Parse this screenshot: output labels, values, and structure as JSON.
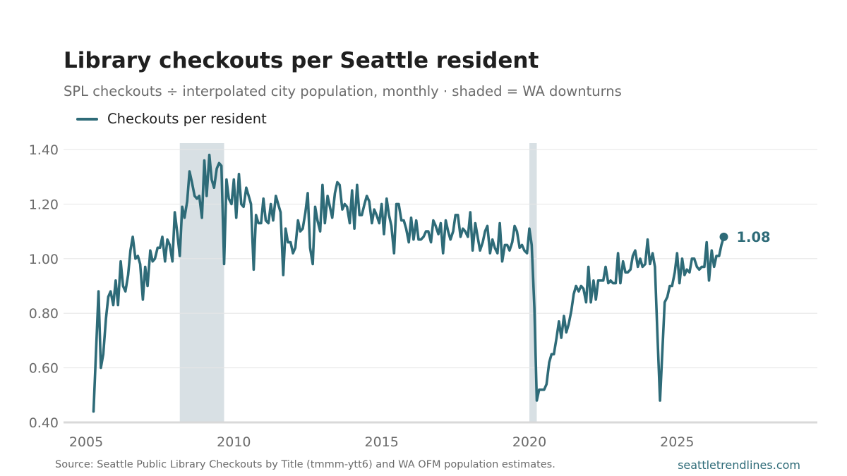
{
  "title": "Library checkouts per Seattle resident",
  "subtitle": "SPL checkouts ÷ interpolated city population, monthly · shaded = WA downturns",
  "footer": {
    "source": "Source: Seattle Public Library Checkouts by Title (tmmm-ytt6) and WA OFM population estimates.",
    "site": "seattletrendlines.com"
  },
  "colors": {
    "line": "#2e6b78",
    "shade": "#d8e0e4",
    "grid": "#e6e6e6",
    "axis_text": "#6b6b6b",
    "baseline": "#d9d9d9"
  },
  "chart_data": {
    "type": "line",
    "title": "Library checkouts per Seattle resident",
    "xlabel": "",
    "ylabel": "",
    "xlim": [
      2005.0,
      2029.5
    ],
    "ylim": [
      0.4,
      1.42
    ],
    "x_ticks": [
      2005,
      2010,
      2015,
      2020,
      2025
    ],
    "y_ticks": [
      0.4,
      0.6,
      0.8,
      1.0,
      1.2,
      1.4
    ],
    "y_tick_labels": [
      "0.40",
      "0.60",
      "0.80",
      "1.00",
      "1.20",
      "1.40"
    ],
    "grid": true,
    "legend": "top-left",
    "shaded_periods": [
      {
        "start": 2008.17,
        "end": 2009.67
      },
      {
        "start": 2020.0,
        "end": 2020.25
      }
    ],
    "end_label": "1.08",
    "series": [
      {
        "name": "Checkouts per resident",
        "x": [
          2005.25,
          2005.42,
          2005.5,
          2005.58,
          2005.67,
          2005.75,
          2005.83,
          2005.92,
          2006.0,
          2006.08,
          2006.17,
          2006.25,
          2006.33,
          2006.42,
          2006.5,
          2006.58,
          2006.67,
          2006.75,
          2006.83,
          2006.92,
          2007.0,
          2007.08,
          2007.17,
          2007.25,
          2007.33,
          2007.42,
          2007.5,
          2007.58,
          2007.67,
          2007.75,
          2007.83,
          2007.92,
          2008.0,
          2008.08,
          2008.17,
          2008.25,
          2008.33,
          2008.42,
          2008.5,
          2008.58,
          2008.67,
          2008.75,
          2008.83,
          2008.92,
          2009.0,
          2009.08,
          2009.17,
          2009.25,
          2009.33,
          2009.42,
          2009.5,
          2009.58,
          2009.67,
          2009.75,
          2009.83,
          2009.92,
          2010.0,
          2010.08,
          2010.17,
          2010.25,
          2010.33,
          2010.42,
          2010.5,
          2010.58,
          2010.67,
          2010.75,
          2010.83,
          2010.92,
          2011.0,
          2011.08,
          2011.17,
          2011.25,
          2011.33,
          2011.42,
          2011.5,
          2011.58,
          2011.67,
          2011.75,
          2011.83,
          2011.92,
          2012.0,
          2012.08,
          2012.17,
          2012.25,
          2012.33,
          2012.42,
          2012.5,
          2012.58,
          2012.67,
          2012.75,
          2012.83,
          2012.92,
          2013.0,
          2013.08,
          2013.17,
          2013.25,
          2013.33,
          2013.42,
          2013.5,
          2013.58,
          2013.67,
          2013.75,
          2013.83,
          2013.92,
          2014.0,
          2014.08,
          2014.17,
          2014.25,
          2014.33,
          2014.42,
          2014.5,
          2014.58,
          2014.67,
          2014.75,
          2014.83,
          2014.92,
          2015.0,
          2015.08,
          2015.17,
          2015.25,
          2015.33,
          2015.42,
          2015.5,
          2015.58,
          2015.67,
          2015.75,
          2015.83,
          2015.92,
          2016.0,
          2016.08,
          2016.17,
          2016.25,
          2016.33,
          2016.42,
          2016.5,
          2016.58,
          2016.67,
          2016.75,
          2016.83,
          2016.92,
          2017.0,
          2017.08,
          2017.17,
          2017.25,
          2017.33,
          2017.42,
          2017.5,
          2017.58,
          2017.67,
          2017.75,
          2017.83,
          2017.92,
          2018.0,
          2018.08,
          2018.17,
          2018.25,
          2018.33,
          2018.42,
          2018.5,
          2018.58,
          2018.67,
          2018.75,
          2018.83,
          2018.92,
          2019.0,
          2019.08,
          2019.17,
          2019.25,
          2019.33,
          2019.42,
          2019.5,
          2019.58,
          2019.67,
          2019.75,
          2019.83,
          2019.92,
          2020.0,
          2020.08,
          2020.17,
          2020.25,
          2020.33,
          2020.42,
          2020.5,
          2020.58,
          2020.67,
          2020.75,
          2020.83,
          2020.92,
          2021.0,
          2021.08,
          2021.17,
          2021.25,
          2021.33,
          2021.42,
          2021.5,
          2021.58,
          2021.67,
          2021.75,
          2021.83,
          2021.92,
          2022.0,
          2022.08,
          2022.17,
          2022.25,
          2022.33,
          2022.42,
          2022.5,
          2022.58,
          2022.67,
          2022.75,
          2022.83,
          2022.92,
          2023.0,
          2023.08,
          2023.17,
          2023.25,
          2023.33,
          2023.42,
          2023.5,
          2023.58,
          2023.67,
          2023.75,
          2023.83,
          2023.92,
          2024.0,
          2024.08,
          2024.17,
          2024.25,
          2024.33,
          2024.42,
          2024.5,
          2024.58,
          2024.67,
          2024.75,
          2024.83,
          2024.92,
          2025.0,
          2025.08,
          2025.17,
          2025.25,
          2025.33,
          2025.42,
          2025.5,
          2025.58,
          2025.67,
          2025.75,
          2025.83,
          2025.92,
          2026.0,
          2026.08,
          2026.17,
          2026.25,
          2026.33,
          2026.42,
          2026.5,
          2026.58
        ],
        "y": [
          0.44,
          0.88,
          0.6,
          0.65,
          0.78,
          0.86,
          0.88,
          0.83,
          0.92,
          0.83,
          0.99,
          0.9,
          0.88,
          0.94,
          1.03,
          1.08,
          1.0,
          1.01,
          0.98,
          0.85,
          0.97,
          0.9,
          1.03,
          0.99,
          1.0,
          1.04,
          1.04,
          1.08,
          0.99,
          1.07,
          1.05,
          0.99,
          1.17,
          1.1,
          1.01,
          1.19,
          1.15,
          1.21,
          1.32,
          1.28,
          1.23,
          1.22,
          1.23,
          1.15,
          1.36,
          1.23,
          1.38,
          1.29,
          1.26,
          1.33,
          1.35,
          1.34,
          0.98,
          1.29,
          1.22,
          1.2,
          1.29,
          1.15,
          1.31,
          1.2,
          1.19,
          1.26,
          1.23,
          1.2,
          0.96,
          1.16,
          1.13,
          1.13,
          1.22,
          1.14,
          1.13,
          1.2,
          1.14,
          1.23,
          1.2,
          1.17,
          0.94,
          1.11,
          1.06,
          1.06,
          1.02,
          1.04,
          1.14,
          1.1,
          1.11,
          1.17,
          1.24,
          1.04,
          0.98,
          1.19,
          1.14,
          1.1,
          1.27,
          1.13,
          1.23,
          1.19,
          1.15,
          1.24,
          1.28,
          1.27,
          1.18,
          1.2,
          1.19,
          1.13,
          1.25,
          1.11,
          1.27,
          1.16,
          1.16,
          1.2,
          1.23,
          1.21,
          1.13,
          1.18,
          1.16,
          1.13,
          1.2,
          1.09,
          1.22,
          1.16,
          1.12,
          1.02,
          1.2,
          1.2,
          1.14,
          1.14,
          1.11,
          1.06,
          1.15,
          1.07,
          1.14,
          1.07,
          1.07,
          1.08,
          1.1,
          1.1,
          1.06,
          1.14,
          1.12,
          1.09,
          1.13,
          1.02,
          1.14,
          1.1,
          1.07,
          1.1,
          1.16,
          1.16,
          1.08,
          1.11,
          1.1,
          1.08,
          1.17,
          1.03,
          1.13,
          1.08,
          1.03,
          1.06,
          1.1,
          1.12,
          1.02,
          1.07,
          1.04,
          1.02,
          1.13,
          0.99,
          1.05,
          1.05,
          1.03,
          1.06,
          1.12,
          1.1,
          1.04,
          1.05,
          1.03,
          1.02,
          1.11,
          1.05,
          0.82,
          0.48,
          0.52,
          0.52,
          0.52,
          0.54,
          0.62,
          0.65,
          0.65,
          0.71,
          0.77,
          0.71,
          0.79,
          0.73,
          0.76,
          0.81,
          0.87,
          0.9,
          0.88,
          0.9,
          0.89,
          0.84,
          0.97,
          0.84,
          0.92,
          0.85,
          0.92,
          0.92,
          0.92,
          0.97,
          0.91,
          0.92,
          0.91,
          0.91,
          1.02,
          0.91,
          0.99,
          0.95,
          0.95,
          0.96,
          1.01,
          1.03,
          0.97,
          1.0,
          0.97,
          0.98,
          1.07,
          0.98,
          1.02,
          0.97,
          0.73,
          0.48,
          0.66,
          0.84,
          0.86,
          0.9,
          0.9,
          0.95,
          1.02,
          0.91,
          1.0,
          0.94,
          0.96,
          0.95,
          1.0,
          1.0,
          0.97,
          0.96,
          0.97,
          0.97,
          1.06,
          0.92,
          1.03,
          0.97,
          1.01,
          1.01,
          1.05,
          1.08
        ]
      }
    ]
  }
}
